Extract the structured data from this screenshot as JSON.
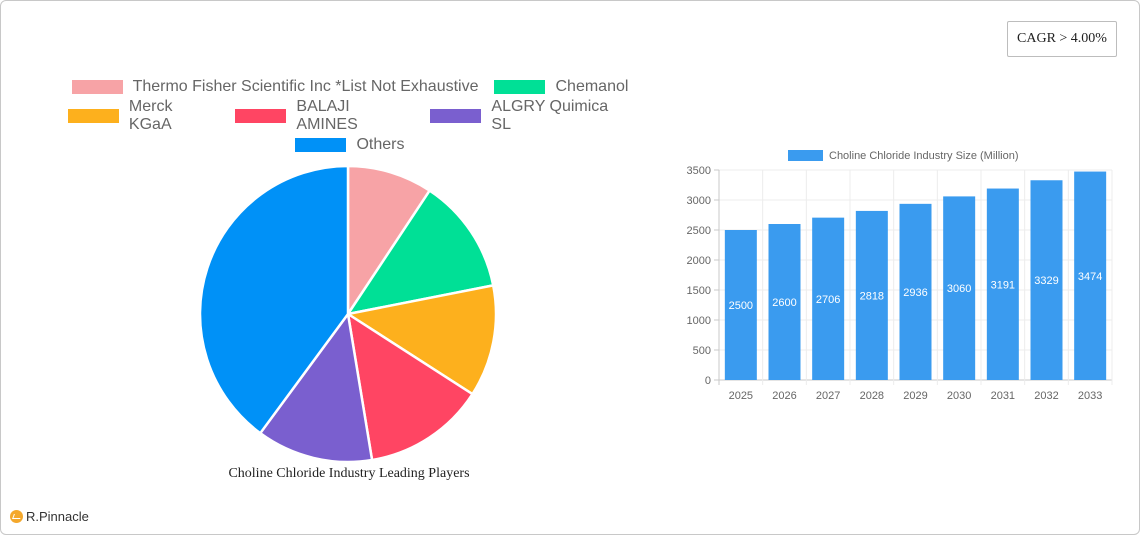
{
  "badge": {
    "cagr_label": "CAGR > 4.00%"
  },
  "brand": {
    "logo_text": "R.Pinnacle",
    "logo_icon": "pinnacle-logo-icon"
  },
  "chart_data": [
    {
      "type": "pie",
      "title": "Choline Chloride Industry Leading Players",
      "legend_position": "top",
      "categories": [
        "Thermo Fisher Scientific Inc *List Not Exhaustive",
        "Chemanol",
        "Merck KGaA",
        "BALAJI AMINES",
        "ALGRY Quimica SL",
        "Others"
      ],
      "values": [
        9.3,
        12.6,
        12.2,
        13.3,
        12.7,
        39.9
      ],
      "colors": [
        "#f7a3a6",
        "#00e096",
        "#fdb01d",
        "#ff4563",
        "#7a5fcf",
        "#0091f7"
      ]
    },
    {
      "type": "bar",
      "title": "",
      "legend": [
        "Choline Chloride Industry Size (Million)"
      ],
      "legend_position": "top",
      "categories": [
        "2025",
        "2026",
        "2027",
        "2028",
        "2029",
        "2030",
        "2031",
        "2032",
        "2033"
      ],
      "values": [
        2500,
        2600,
        2706,
        2818,
        2936,
        3060,
        3191,
        3329,
        3474
      ],
      "xlabel": "",
      "ylabel": "",
      "ylim": [
        0,
        3500
      ],
      "yticks": [
        0,
        500,
        1000,
        1500,
        2000,
        2500,
        3000,
        3500
      ],
      "grid": true,
      "data_labels": true,
      "color": "#3a9bef"
    }
  ]
}
